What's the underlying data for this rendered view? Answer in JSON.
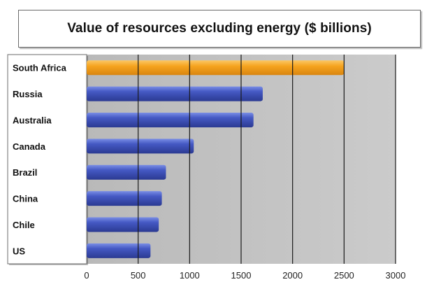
{
  "chart_data": {
    "type": "bar",
    "orientation": "horizontal",
    "title": "Value of resources excluding energy ($ billions)",
    "categories": [
      "South Africa",
      "Russia",
      "Australia",
      "Canada",
      "Brazil",
      "China",
      "Chile",
      "US"
    ],
    "values": [
      2500,
      1710,
      1620,
      1040,
      770,
      730,
      700,
      620
    ],
    "x_ticks": [
      "0",
      "500",
      "1000",
      "1500",
      "2000",
      "2500",
      "3000"
    ],
    "xlim": [
      0,
      3000
    ],
    "grid": true,
    "highlight_category": "South Africa",
    "colors": {
      "default_bar": "#3f51b8",
      "highlight_bar": "#f5a31e",
      "plot_background": "#c2c2c2",
      "grid_line": "#1a1a1a"
    }
  }
}
